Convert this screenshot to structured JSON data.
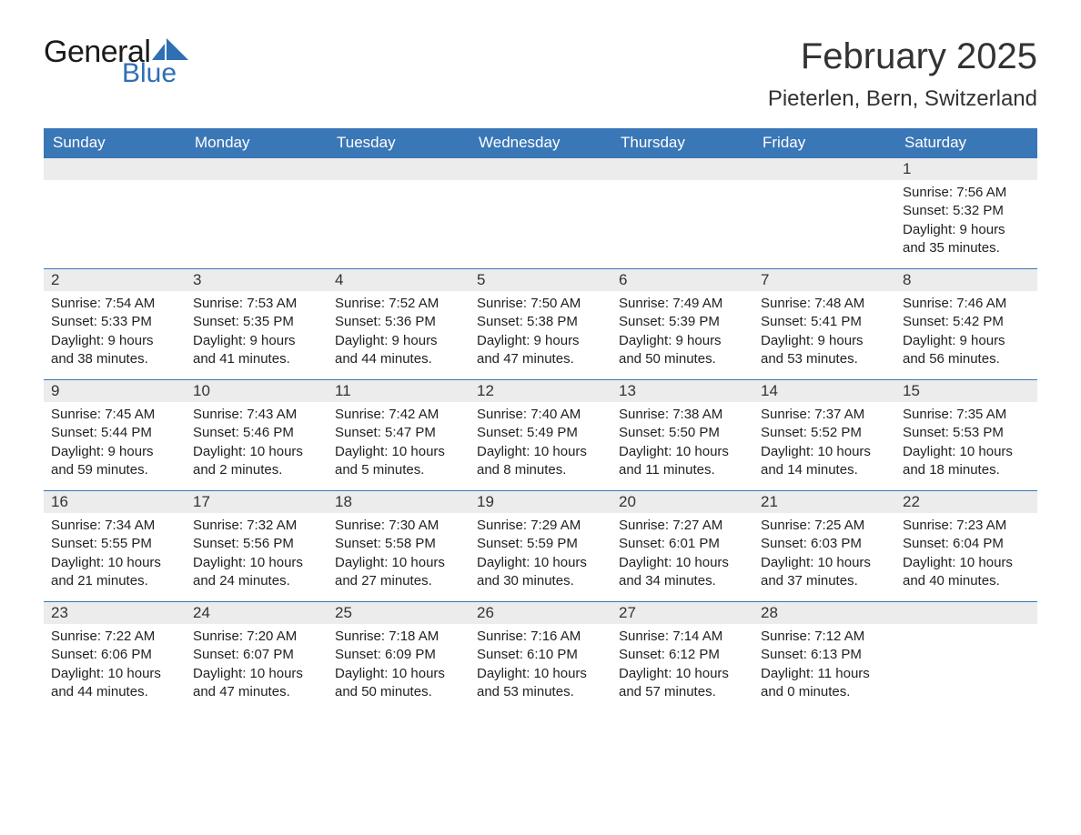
{
  "brand": {
    "name_part1": "General",
    "name_part2": "Blue",
    "text_color": "#1a1a1a",
    "accent_color": "#2f6fb3"
  },
  "title": "February 2025",
  "location": "Pieterlen, Bern, Switzerland",
  "colors": {
    "header_bg": "#3a77b7",
    "header_text": "#ffffff",
    "daynum_bg": "#ececec",
    "border": "#3a77b7",
    "body_text": "#222222",
    "page_bg": "#ffffff"
  },
  "fonts": {
    "title_size_pt": 30,
    "location_size_pt": 18,
    "header_size_pt": 13,
    "daynum_size_pt": 13,
    "body_size_pt": 11
  },
  "weekdays": [
    "Sunday",
    "Monday",
    "Tuesday",
    "Wednesday",
    "Thursday",
    "Friday",
    "Saturday"
  ],
  "weeks": [
    [
      null,
      null,
      null,
      null,
      null,
      null,
      {
        "n": "1",
        "sunrise": "Sunrise: 7:56 AM",
        "sunset": "Sunset: 5:32 PM",
        "daylight": "Daylight: 9 hours and 35 minutes."
      }
    ],
    [
      {
        "n": "2",
        "sunrise": "Sunrise: 7:54 AM",
        "sunset": "Sunset: 5:33 PM",
        "daylight": "Daylight: 9 hours and 38 minutes."
      },
      {
        "n": "3",
        "sunrise": "Sunrise: 7:53 AM",
        "sunset": "Sunset: 5:35 PM",
        "daylight": "Daylight: 9 hours and 41 minutes."
      },
      {
        "n": "4",
        "sunrise": "Sunrise: 7:52 AM",
        "sunset": "Sunset: 5:36 PM",
        "daylight": "Daylight: 9 hours and 44 minutes."
      },
      {
        "n": "5",
        "sunrise": "Sunrise: 7:50 AM",
        "sunset": "Sunset: 5:38 PM",
        "daylight": "Daylight: 9 hours and 47 minutes."
      },
      {
        "n": "6",
        "sunrise": "Sunrise: 7:49 AM",
        "sunset": "Sunset: 5:39 PM",
        "daylight": "Daylight: 9 hours and 50 minutes."
      },
      {
        "n": "7",
        "sunrise": "Sunrise: 7:48 AM",
        "sunset": "Sunset: 5:41 PM",
        "daylight": "Daylight: 9 hours and 53 minutes."
      },
      {
        "n": "8",
        "sunrise": "Sunrise: 7:46 AM",
        "sunset": "Sunset: 5:42 PM",
        "daylight": "Daylight: 9 hours and 56 minutes."
      }
    ],
    [
      {
        "n": "9",
        "sunrise": "Sunrise: 7:45 AM",
        "sunset": "Sunset: 5:44 PM",
        "daylight": "Daylight: 9 hours and 59 minutes."
      },
      {
        "n": "10",
        "sunrise": "Sunrise: 7:43 AM",
        "sunset": "Sunset: 5:46 PM",
        "daylight": "Daylight: 10 hours and 2 minutes."
      },
      {
        "n": "11",
        "sunrise": "Sunrise: 7:42 AM",
        "sunset": "Sunset: 5:47 PM",
        "daylight": "Daylight: 10 hours and 5 minutes."
      },
      {
        "n": "12",
        "sunrise": "Sunrise: 7:40 AM",
        "sunset": "Sunset: 5:49 PM",
        "daylight": "Daylight: 10 hours and 8 minutes."
      },
      {
        "n": "13",
        "sunrise": "Sunrise: 7:38 AM",
        "sunset": "Sunset: 5:50 PM",
        "daylight": "Daylight: 10 hours and 11 minutes."
      },
      {
        "n": "14",
        "sunrise": "Sunrise: 7:37 AM",
        "sunset": "Sunset: 5:52 PM",
        "daylight": "Daylight: 10 hours and 14 minutes."
      },
      {
        "n": "15",
        "sunrise": "Sunrise: 7:35 AM",
        "sunset": "Sunset: 5:53 PM",
        "daylight": "Daylight: 10 hours and 18 minutes."
      }
    ],
    [
      {
        "n": "16",
        "sunrise": "Sunrise: 7:34 AM",
        "sunset": "Sunset: 5:55 PM",
        "daylight": "Daylight: 10 hours and 21 minutes."
      },
      {
        "n": "17",
        "sunrise": "Sunrise: 7:32 AM",
        "sunset": "Sunset: 5:56 PM",
        "daylight": "Daylight: 10 hours and 24 minutes."
      },
      {
        "n": "18",
        "sunrise": "Sunrise: 7:30 AM",
        "sunset": "Sunset: 5:58 PM",
        "daylight": "Daylight: 10 hours and 27 minutes."
      },
      {
        "n": "19",
        "sunrise": "Sunrise: 7:29 AM",
        "sunset": "Sunset: 5:59 PM",
        "daylight": "Daylight: 10 hours and 30 minutes."
      },
      {
        "n": "20",
        "sunrise": "Sunrise: 7:27 AM",
        "sunset": "Sunset: 6:01 PM",
        "daylight": "Daylight: 10 hours and 34 minutes."
      },
      {
        "n": "21",
        "sunrise": "Sunrise: 7:25 AM",
        "sunset": "Sunset: 6:03 PM",
        "daylight": "Daylight: 10 hours and 37 minutes."
      },
      {
        "n": "22",
        "sunrise": "Sunrise: 7:23 AM",
        "sunset": "Sunset: 6:04 PM",
        "daylight": "Daylight: 10 hours and 40 minutes."
      }
    ],
    [
      {
        "n": "23",
        "sunrise": "Sunrise: 7:22 AM",
        "sunset": "Sunset: 6:06 PM",
        "daylight": "Daylight: 10 hours and 44 minutes."
      },
      {
        "n": "24",
        "sunrise": "Sunrise: 7:20 AM",
        "sunset": "Sunset: 6:07 PM",
        "daylight": "Daylight: 10 hours and 47 minutes."
      },
      {
        "n": "25",
        "sunrise": "Sunrise: 7:18 AM",
        "sunset": "Sunset: 6:09 PM",
        "daylight": "Daylight: 10 hours and 50 minutes."
      },
      {
        "n": "26",
        "sunrise": "Sunrise: 7:16 AM",
        "sunset": "Sunset: 6:10 PM",
        "daylight": "Daylight: 10 hours and 53 minutes."
      },
      {
        "n": "27",
        "sunrise": "Sunrise: 7:14 AM",
        "sunset": "Sunset: 6:12 PM",
        "daylight": "Daylight: 10 hours and 57 minutes."
      },
      {
        "n": "28",
        "sunrise": "Sunrise: 7:12 AM",
        "sunset": "Sunset: 6:13 PM",
        "daylight": "Daylight: 11 hours and 0 minutes."
      },
      null
    ]
  ]
}
